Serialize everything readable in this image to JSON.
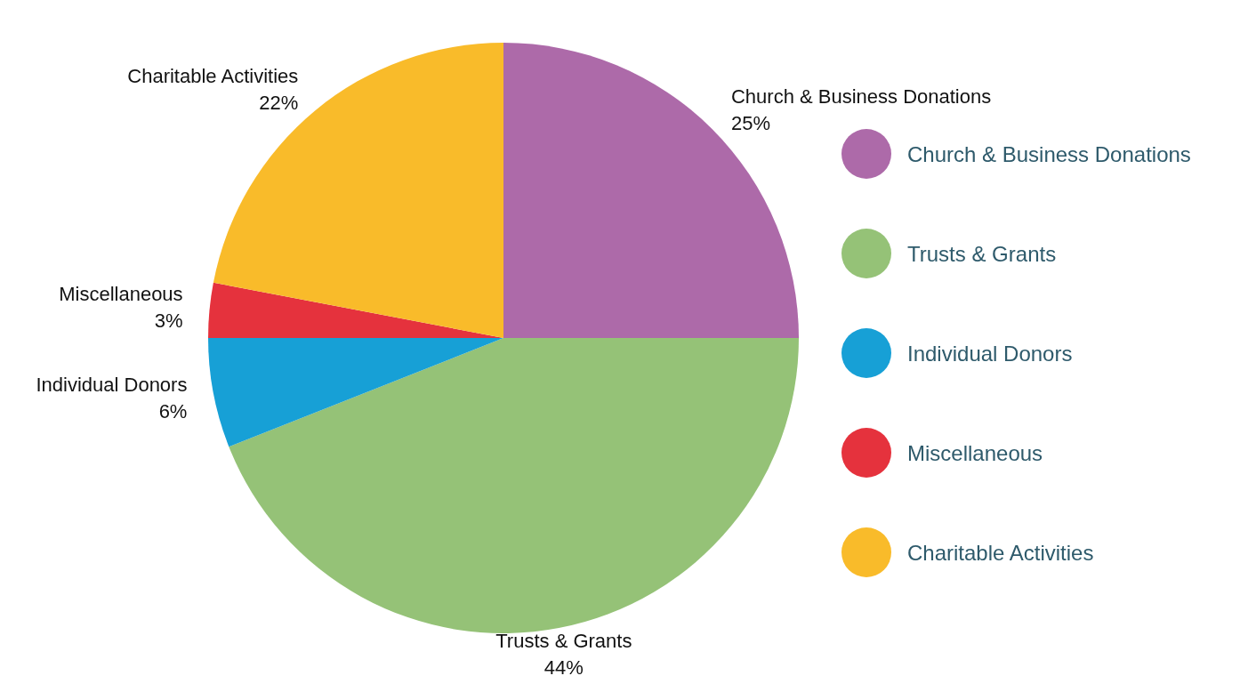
{
  "chart_data": {
    "type": "pie",
    "categories": [
      "Church & Business Donations",
      "Trusts & Grants",
      "Individual Donors",
      "Miscellaneous",
      "Charitable Activities"
    ],
    "values": [
      25,
      44,
      6,
      3,
      22
    ],
    "value_labels": [
      "25%",
      "44%",
      "6%",
      "3%",
      "22%"
    ],
    "colors": [
      "#ad6aa9",
      "#95c277",
      "#17a0d6",
      "#e5323d",
      "#f9bb2a"
    ],
    "legend": "right"
  }
}
